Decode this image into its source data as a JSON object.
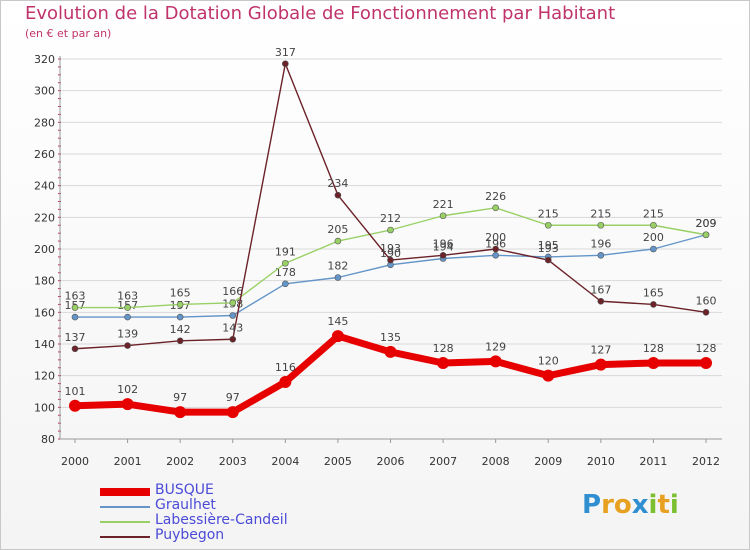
{
  "title": "Evolution de la Dotation Globale de Fonctionnement par Habitant",
  "subtitle": "(en € et par an)",
  "logo": "Proxiti",
  "chart_data": {
    "type": "line",
    "title": "Evolution de la Dotation Globale de Fonctionnement par Habitant",
    "ylabel": "(en € et par an)",
    "xlabel": "",
    "ylim": [
      80,
      320
    ],
    "yticks": [
      80,
      100,
      120,
      140,
      160,
      180,
      200,
      220,
      240,
      260,
      280,
      300,
      320
    ],
    "categories": [
      "2000",
      "2001",
      "2002",
      "2003",
      "2004",
      "2005",
      "2006",
      "2007",
      "2008",
      "2009",
      "2010",
      "2011",
      "2012"
    ],
    "legend_position": "bottom-left",
    "series": [
      {
        "name": "BUSQUE",
        "color": "#e60000",
        "values": [
          101,
          102,
          97,
          97,
          116,
          145,
          135,
          128,
          129,
          120,
          127,
          128,
          128
        ]
      },
      {
        "name": "Graulhet",
        "color": "#6495c8",
        "values": [
          157,
          157,
          157,
          158,
          178,
          182,
          190,
          194,
          196,
          195,
          196,
          200,
          209
        ]
      },
      {
        "name": "Labessière-Candeil",
        "color": "#99d066",
        "values": [
          163,
          163,
          165,
          166,
          191,
          205,
          212,
          221,
          226,
          215,
          215,
          215,
          209
        ]
      },
      {
        "name": "Puybegon",
        "color": "#6b2228",
        "values": [
          137,
          139,
          142,
          143,
          317,
          234,
          193,
          196,
          200,
          193,
          167,
          165,
          160
        ]
      }
    ]
  }
}
